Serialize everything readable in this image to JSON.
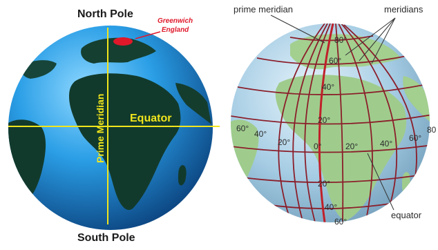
{
  "left_globe": {
    "north_pole": "North Pole",
    "south_pole": "South Pole",
    "greenwich_line1": "Greenwich",
    "greenwich_line2": "England",
    "prime_meridian": "Prime Meridian",
    "equator": "Equator",
    "colors": {
      "ocean": "#1e8fd6",
      "land": "#123a2c",
      "lines": "#f2e61c",
      "greenwich": "#e0182a"
    }
  },
  "right_globe": {
    "prime_meridian_label": "prime meridian",
    "meridians_label": "meridians",
    "equator_label": "equator",
    "lat_north": [
      "60°",
      "40°",
      "20°",
      "80°"
    ],
    "lat_south": [
      "20°",
      "40°",
      "60°"
    ],
    "lon_west": [
      "60°",
      "40°",
      "20°"
    ],
    "lon_east": [
      "20°",
      "40°",
      "60°",
      "80"
    ],
    "zero": "0°",
    "colors": {
      "ocean": "#a6cde4",
      "land": "#9fcc8d",
      "grid": "#8b1e2a",
      "prime": "#c0202a"
    }
  }
}
